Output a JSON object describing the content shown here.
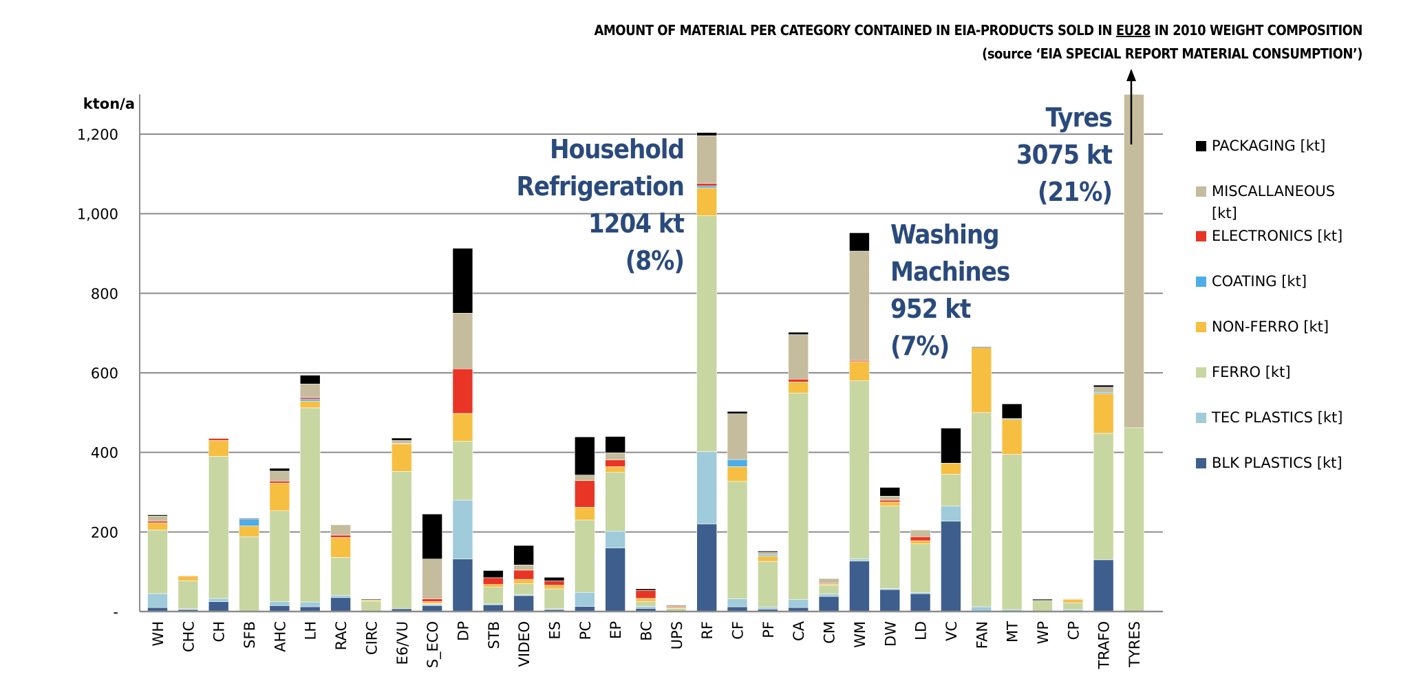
{
  "title": {
    "line1_pre": "AMOUNT OF MATERIAL PER CATEGORY CONTAINED IN EIA-PRODUCTS SOLD IN ",
    "line1_underlined": "EU28",
    "line1_post": " IN 2010 WEIGHT COMPOSITION",
    "line2": "(source ‘EIA SPECIAL REPORT MATERIAL CONSUMPTION’)"
  },
  "annotations": {
    "refrigeration": [
      "Household",
      "Refrigeration",
      "1204 kt",
      "(8%)"
    ],
    "washing": [
      "Washing",
      "Machines",
      "952 kt",
      "(7%)"
    ],
    "tyres": [
      "Tyres",
      "3075 kt",
      "(21%)"
    ]
  },
  "chart_data": {
    "type": "bar",
    "stacked": true,
    "title": "AMOUNT OF MATERIAL PER CATEGORY CONTAINED IN EIA-PRODUCTS SOLD IN EU28 IN 2010 WEIGHT COMPOSITION",
    "subtitle": "(source ‘EIA SPECIAL REPORT MATERIAL CONSUMPTION’)",
    "xlabel": "",
    "ylabel": "kton/a",
    "ylim": [
      0,
      1300
    ],
    "yticks": [
      0,
      200,
      400,
      600,
      800,
      1000,
      1200
    ],
    "ytick_labels": [
      "-",
      "200",
      "400",
      "600",
      "800",
      "1,000",
      "1,200"
    ],
    "grid": true,
    "legend_position": "right",
    "categories": [
      "WH",
      "CHC",
      "CH",
      "SFB",
      "AHC",
      "LH",
      "RAC",
      "CIRC",
      "E6/VU",
      "S_ECO",
      "DP",
      "STB",
      "VIDEO",
      "ES",
      "PC",
      "EP",
      "BC",
      "UPS",
      "RF",
      "CF",
      "PF",
      "CA",
      "CM",
      "WM",
      "DW",
      "LD",
      "VC",
      "FAN",
      "MT",
      "WP",
      "CP",
      "TRAFO",
      "TYRES"
    ],
    "series": [
      {
        "name": "BLK PLASTICS [kt]",
        "color": "#3e5f8e",
        "values": [
          10,
          5,
          25,
          0,
          15,
          12,
          35,
          0,
          7,
          15,
          132,
          17,
          40,
          5,
          13,
          160,
          8,
          0,
          220,
          12,
          6,
          10,
          38,
          127,
          55,
          45,
          227,
          0,
          0,
          0,
          0,
          130,
          0
        ]
      },
      {
        "name": "TEC PLASTICS [kt]",
        "color": "#9fcbdb",
        "values": [
          35,
          2,
          8,
          0,
          10,
          12,
          6,
          0,
          0,
          3,
          148,
          2,
          2,
          2,
          35,
          42,
          5,
          0,
          182,
          20,
          5,
          20,
          6,
          5,
          3,
          3,
          38,
          12,
          5,
          0,
          5,
          0,
          0
        ]
      },
      {
        "name": "FERRO [kt]",
        "color": "#c8d6a2",
        "values": [
          160,
          70,
          357,
          188,
          228,
          488,
          95,
          26,
          345,
          2,
          148,
          42,
          28,
          50,
          182,
          148,
          12,
          8,
          593,
          295,
          115,
          519,
          22,
          448,
          207,
          122,
          80,
          488,
          390,
          28,
          17,
          318,
          462
        ]
      },
      {
        "name": "NON-FERRO [kt]",
        "color": "#f6bf42",
        "values": [
          18,
          12,
          40,
          27,
          70,
          17,
          50,
          3,
          70,
          5,
          70,
          7,
          11,
          9,
          32,
          14,
          8,
          3,
          70,
          37,
          13,
          28,
          3,
          48,
          10,
          8,
          28,
          163,
          88,
          0,
          8,
          100,
          0
        ]
      },
      {
        "name": "COATING [kt]",
        "color": "#4baee8",
        "values": [
          0,
          0,
          0,
          18,
          0,
          5,
          0,
          0,
          0,
          0,
          0,
          0,
          0,
          0,
          0,
          0,
          0,
          0,
          5,
          18,
          3,
          0,
          0,
          0,
          0,
          0,
          0,
          0,
          2,
          0,
          0,
          3,
          0
        ]
      },
      {
        "name": "ELECTRONICS [kt]",
        "color": "#e83525",
        "values": [
          4,
          1,
          5,
          2,
          5,
          4,
          6,
          0,
          1,
          7,
          112,
          17,
          23,
          11,
          67,
          17,
          20,
          2,
          6,
          0,
          0,
          7,
          2,
          3,
          5,
          10,
          0,
          0,
          0,
          0,
          0,
          0,
          0
        ]
      },
      {
        "name": "MISCALLANEOUS [kt]",
        "color": "#c4bc9c",
        "values": [
          13,
          0,
          0,
          0,
          25,
          34,
          26,
          0,
          7,
          100,
          140,
          0,
          13,
          0,
          14,
          18,
          0,
          0,
          120,
          115,
          7,
          112,
          12,
          275,
          10,
          17,
          0,
          0,
          0,
          0,
          2,
          13,
          2613
        ]
      },
      {
        "name": "PACKAGING [kt]",
        "color": "#000000",
        "values": [
          3,
          0,
          0,
          0,
          7,
          22,
          0,
          2,
          6,
          113,
          163,
          18,
          49,
          9,
          96,
          41,
          4,
          2,
          8,
          6,
          3,
          6,
          0,
          46,
          22,
          0,
          88,
          2,
          37,
          3,
          0,
          5,
          0
        ]
      }
    ],
    "totals_annotated": {
      "RF": 1204,
      "WM": 952,
      "TYRES": 3075
    },
    "tyres_clipped": true
  },
  "legend": [
    {
      "label": "PACKAGING [kt]",
      "color": "#000000"
    },
    {
      "label": "MISCALLANEOUS [kt]",
      "color": "#c4bc9c"
    },
    {
      "label": "ELECTRONICS [kt]",
      "color": "#e83525"
    },
    {
      "label": "COATING [kt]",
      "color": "#4baee8"
    },
    {
      "label": "NON-FERRO [kt]",
      "color": "#f6bf42"
    },
    {
      "label": "FERRO [kt]",
      "color": "#c8d6a2"
    },
    {
      "label": "TEC PLASTICS [kt]",
      "color": "#9fcbdb"
    },
    {
      "label": "BLK PLASTICS [kt]",
      "color": "#3e5f8e"
    }
  ]
}
